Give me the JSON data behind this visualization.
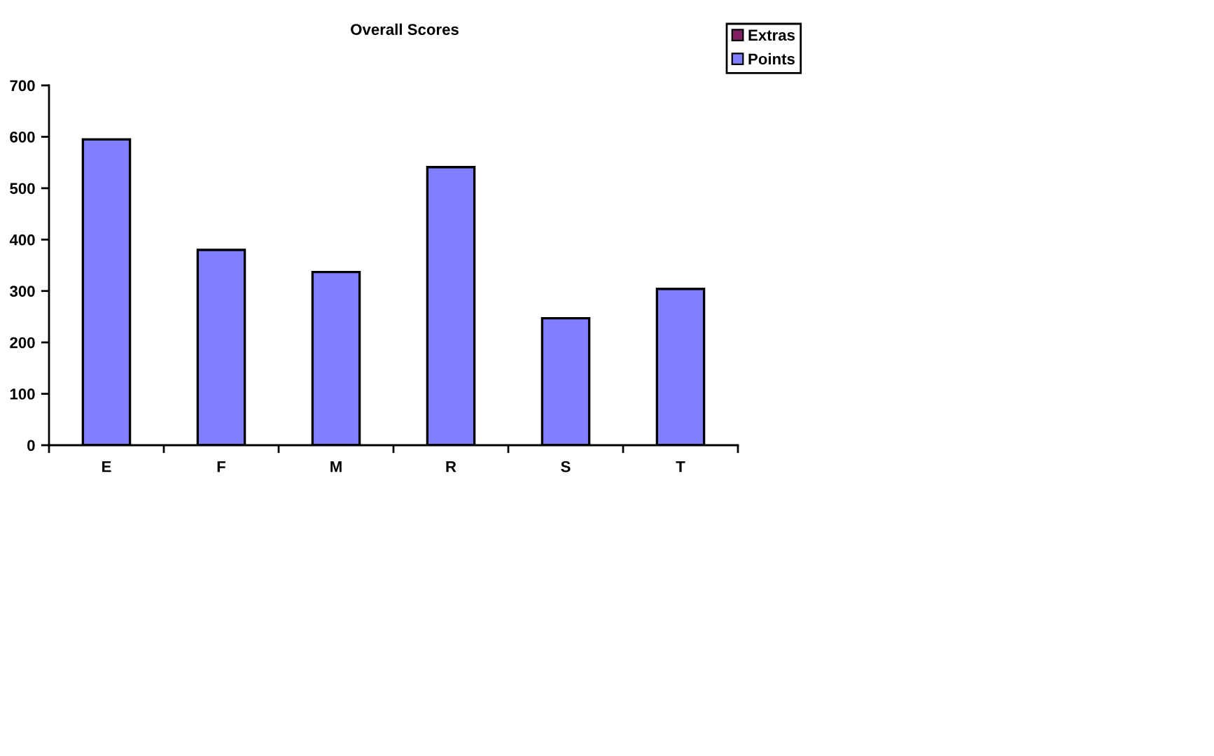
{
  "chart_data": {
    "type": "bar",
    "title": "Overall Scores",
    "categories": [
      "E",
      "F",
      "M",
      "R",
      "S",
      "T"
    ],
    "series": [
      {
        "name": "Points",
        "color": "#8080ff",
        "values": [
          595,
          380,
          337,
          541,
          247,
          304
        ]
      },
      {
        "name": "Extras",
        "color": "#802060",
        "values": [
          null,
          null,
          null,
          null,
          null,
          null
        ]
      }
    ],
    "stacked": true,
    "ylim": [
      0,
      700
    ],
    "yticks": [
      0,
      100,
      200,
      300,
      400,
      500,
      600,
      700
    ],
    "grid": false,
    "legend": "top right"
  }
}
